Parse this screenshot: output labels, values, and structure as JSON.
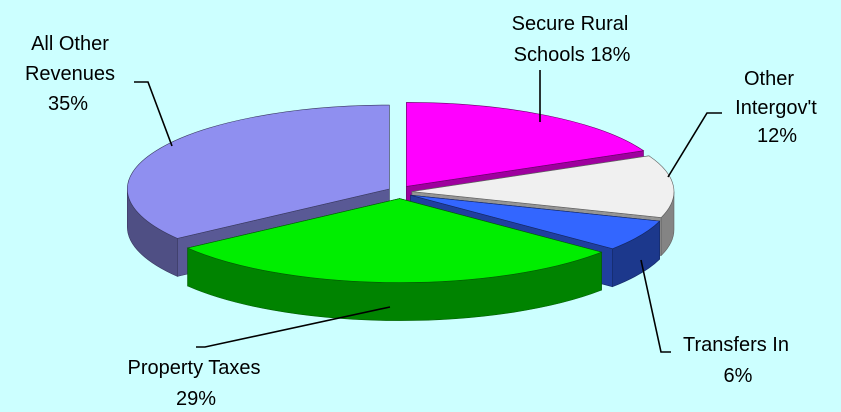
{
  "chart_data": {
    "type": "pie",
    "title": "",
    "slices": [
      {
        "name": "Secure Rural Schools",
        "value": 18,
        "color": "#FF00FF"
      },
      {
        "name": "Other Intergov't",
        "value": 12,
        "color": "#F0F0F0"
      },
      {
        "name": "Transfers In",
        "value": 6,
        "color": "#3366FF"
      },
      {
        "name": "Property Taxes",
        "value": 29,
        "color": "#00EE00"
      },
      {
        "name": "All Other Revenues",
        "value": 35,
        "color": "#8F8FF0"
      }
    ],
    "labels": {
      "secure_rural_line1": "Secure Rural",
      "secure_rural_line2": "Schools 18%",
      "other_intergov_line1": "Other",
      "other_intergov_line2": "Intergov't",
      "other_intergov_line3": "12%",
      "transfers_line1": "Transfers In",
      "transfers_line2": "6%",
      "property_line1": "Property Taxes",
      "property_line2": "29%",
      "all_other_line1": "All Other",
      "all_other_line2": "Revenues",
      "all_other_line3": "35%"
    }
  }
}
